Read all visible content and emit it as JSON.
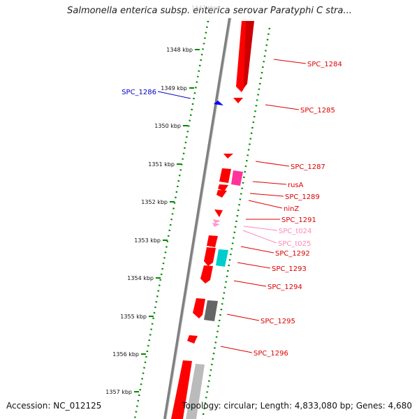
{
  "title": "Salmonella enterica subsp. enterica serovar Paratyphi C stra...",
  "footer": {
    "accession": "Accession: NC_012125",
    "summary": "Topology: circular; Length: 4,833,080 bp; Genes: 4,680"
  },
  "colors": {
    "cds": "#ff0000",
    "rrna_region": "#ff3399",
    "trna": "#ff99cc",
    "misc": "#00cccc",
    "pseudo": "#666666",
    "other": "#bbbbbb",
    "ticks": "#008800",
    "backbone": "#808080",
    "reverse_label": "#0000cc"
  },
  "scale": {
    "partial_label": "1347 kbp",
    "ticks": [
      "1348 kbp",
      "1349 kbp",
      "1350 kbp",
      "1351 kbp",
      "1352 kbp",
      "1353 kbp",
      "1354 kbp",
      "1355 kbp",
      "1356 kbp",
      "1357 kbp"
    ]
  },
  "gene_labels": [
    {
      "text": "SPC_1284",
      "strand": "forward"
    },
    {
      "text": "SPC_1285",
      "strand": "forward"
    },
    {
      "text": "SPC_1286",
      "strand": "reverse"
    },
    {
      "text": "SPC_1287",
      "strand": "forward"
    },
    {
      "text": "rusA",
      "strand": "forward"
    },
    {
      "text": "SPC_1289",
      "strand": "forward"
    },
    {
      "text": "ninZ",
      "strand": "forward"
    },
    {
      "text": "SPC_1291",
      "strand": "forward"
    },
    {
      "text": "SPC_t024",
      "strand": "forward"
    },
    {
      "text": "SPC_t025",
      "strand": "forward"
    },
    {
      "text": "SPC_1292",
      "strand": "forward"
    },
    {
      "text": "SPC_1293",
      "strand": "forward"
    },
    {
      "text": "SPC_1294",
      "strand": "forward"
    },
    {
      "text": "SPC_1295",
      "strand": "forward"
    },
    {
      "text": "SPC_1296",
      "strand": "forward"
    }
  ]
}
